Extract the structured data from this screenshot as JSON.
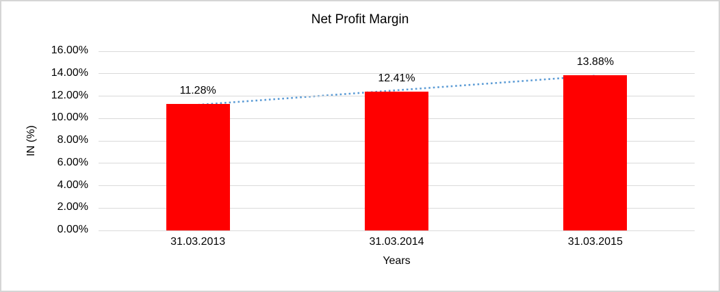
{
  "chart_data": {
    "type": "bar",
    "title": "Net Profit Margin",
    "xlabel": "Years",
    "ylabel": "IN (%)",
    "categories": [
      "31.03.2013",
      "31.03.2014",
      "31.03.2015"
    ],
    "values": [
      11.28,
      12.41,
      13.88
    ],
    "value_labels": [
      "11.28%",
      "12.41%",
      "13.88%"
    ],
    "ylim": [
      0,
      16
    ],
    "y_ticks": [
      {
        "value": 0,
        "label": "0.00%"
      },
      {
        "value": 2,
        "label": "2.00%"
      },
      {
        "value": 4,
        "label": "4.00%"
      },
      {
        "value": 6,
        "label": "6.00%"
      },
      {
        "value": 8,
        "label": "8.00%"
      },
      {
        "value": 10,
        "label": "10.00%"
      },
      {
        "value": 12,
        "label": "12.00%"
      },
      {
        "value": 14,
        "label": "14.00%"
      },
      {
        "value": 16,
        "label": "16.00%"
      }
    ],
    "grid": "horizontal",
    "legend": "none",
    "bar_color": "#ff0000",
    "gridline_color": "#d9d9d9",
    "trendline": {
      "type": "linear",
      "style": "dotted",
      "color": "#5b9bd5",
      "start_value": 11.22,
      "end_value": 13.82
    }
  }
}
